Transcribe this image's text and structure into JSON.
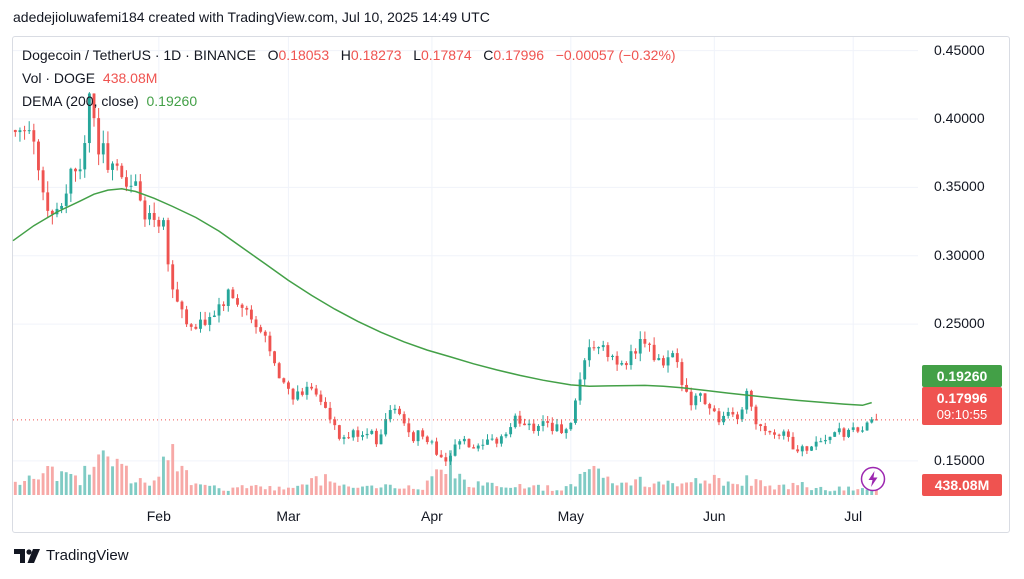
{
  "caption": "adedejioluwafemi184 created with TradingView.com, Jul 10, 2025 14:49 UTC",
  "legend": {
    "symbol": "Dogecoin / TetherUS · 1D · BINANCE",
    "o_label": "O",
    "o": "0.18053",
    "h_label": "H",
    "h": "0.18273",
    "l_label": "L",
    "l": "0.17874",
    "c_label": "C",
    "c": "0.17996",
    "change": "−0.00057 (−0.32%)",
    "vol_label": "Vol · DOGE",
    "vol": "438.08M",
    "dema_label": "DEMA (200, close)",
    "dema": "0.19260"
  },
  "badges": {
    "dema_price": "0.19260",
    "last_price": "0.17996",
    "countdown": "09:10:55",
    "volume": "438.08M"
  },
  "footer": {
    "brand": "TradingView"
  },
  "colors": {
    "up": "#26a69a",
    "down": "#ef5350",
    "dema": "#43a047",
    "vol_up": "#80cbc4",
    "vol_down": "#f7a9a7"
  },
  "chart_data": {
    "type": "candlestick",
    "ylim": [
      0.125,
      0.46
    ],
    "y_ticks": [
      "0.45000",
      "0.40000",
      "0.35000",
      "0.30000",
      "0.25000",
      "0.15000"
    ],
    "x_tick_labels": [
      "Feb",
      "Mar",
      "Apr",
      "May",
      "Jun",
      "Jul"
    ],
    "x_ticks": [
      17,
      45,
      76,
      106,
      137,
      167
    ],
    "x_range": [
      -14.5,
      181
    ],
    "last_price": 0.17996,
    "dema_value": 0.1926,
    "close_path": [
      [
        -14,
        0.392
      ],
      [
        -12,
        0.4
      ],
      [
        -10,
        0.385
      ],
      [
        -8,
        0.345
      ],
      [
        -6,
        0.33
      ],
      [
        -4,
        0.34
      ],
      [
        -2,
        0.36
      ],
      [
        0,
        0.37
      ],
      [
        2,
        0.41
      ],
      [
        4,
        0.38
      ],
      [
        6,
        0.37
      ],
      [
        8,
        0.36
      ],
      [
        10,
        0.355
      ],
      [
        12,
        0.35
      ],
      [
        14,
        0.33
      ],
      [
        16,
        0.33
      ],
      [
        18,
        0.325
      ],
      [
        20,
        0.275
      ],
      [
        22,
        0.26
      ],
      [
        24,
        0.245
      ],
      [
        26,
        0.248
      ],
      [
        28,
        0.255
      ],
      [
        30,
        0.262
      ],
      [
        32,
        0.27
      ],
      [
        34,
        0.265
      ],
      [
        36,
        0.258
      ],
      [
        38,
        0.245
      ],
      [
        40,
        0.24
      ],
      [
        42,
        0.225
      ],
      [
        44,
        0.205
      ],
      [
        46,
        0.195
      ],
      [
        48,
        0.2
      ],
      [
        50,
        0.205
      ],
      [
        52,
        0.195
      ],
      [
        54,
        0.18
      ],
      [
        56,
        0.165
      ],
      [
        58,
        0.168
      ],
      [
        60,
        0.17
      ],
      [
        62,
        0.172
      ],
      [
        64,
        0.165
      ],
      [
        66,
        0.18
      ],
      [
        68,
        0.19
      ],
      [
        70,
        0.175
      ],
      [
        72,
        0.168
      ],
      [
        74,
        0.17
      ],
      [
        76,
        0.162
      ],
      [
        78,
        0.15
      ],
      [
        80,
        0.155
      ],
      [
        82,
        0.165
      ],
      [
        84,
        0.16
      ],
      [
        86,
        0.158
      ],
      [
        88,
        0.162
      ],
      [
        90,
        0.165
      ],
      [
        92,
        0.17
      ],
      [
        94,
        0.18
      ],
      [
        96,
        0.178
      ],
      [
        98,
        0.175
      ],
      [
        100,
        0.18
      ],
      [
        102,
        0.175
      ],
      [
        104,
        0.172
      ],
      [
        106,
        0.175
      ],
      [
        108,
        0.205
      ],
      [
        110,
        0.235
      ],
      [
        112,
        0.232
      ],
      [
        114,
        0.228
      ],
      [
        116,
        0.22
      ],
      [
        118,
        0.225
      ],
      [
        120,
        0.23
      ],
      [
        122,
        0.238
      ],
      [
        124,
        0.225
      ],
      [
        126,
        0.22
      ],
      [
        128,
        0.225
      ],
      [
        130,
        0.21
      ],
      [
        132,
        0.195
      ],
      [
        134,
        0.198
      ],
      [
        136,
        0.19
      ],
      [
        138,
        0.18
      ],
      [
        140,
        0.182
      ],
      [
        142,
        0.18
      ],
      [
        144,
        0.2
      ],
      [
        146,
        0.18
      ],
      [
        148,
        0.175
      ],
      [
        150,
        0.17
      ],
      [
        152,
        0.172
      ],
      [
        154,
        0.16
      ],
      [
        156,
        0.158
      ],
      [
        158,
        0.162
      ],
      [
        160,
        0.165
      ],
      [
        162,
        0.168
      ],
      [
        164,
        0.17
      ],
      [
        166,
        0.17
      ],
      [
        168,
        0.172
      ],
      [
        170,
        0.175
      ],
      [
        172,
        0.18
      ]
    ],
    "dema_line": [
      [
        -14.5,
        0.311
      ],
      [
        -10,
        0.322
      ],
      [
        -5,
        0.332
      ],
      [
        0,
        0.34
      ],
      [
        3,
        0.345
      ],
      [
        6,
        0.348
      ],
      [
        9,
        0.349
      ],
      [
        12,
        0.347
      ],
      [
        16,
        0.342
      ],
      [
        20,
        0.336
      ],
      [
        25,
        0.328
      ],
      [
        30,
        0.318
      ],
      [
        35,
        0.306
      ],
      [
        40,
        0.294
      ],
      [
        45,
        0.282
      ],
      [
        50,
        0.271
      ],
      [
        55,
        0.261
      ],
      [
        60,
        0.252
      ],
      [
        65,
        0.244
      ],
      [
        70,
        0.237
      ],
      [
        75,
        0.231
      ],
      [
        80,
        0.226
      ],
      [
        85,
        0.221
      ],
      [
        90,
        0.2165
      ],
      [
        95,
        0.2125
      ],
      [
        100,
        0.209
      ],
      [
        106,
        0.2055
      ],
      [
        110,
        0.2045
      ],
      [
        114,
        0.2048
      ],
      [
        118,
        0.205
      ],
      [
        122,
        0.2052
      ],
      [
        126,
        0.2045
      ],
      [
        130,
        0.2035
      ],
      [
        135,
        0.2015
      ],
      [
        140,
        0.1995
      ],
      [
        145,
        0.1977
      ],
      [
        150,
        0.1959
      ],
      [
        155,
        0.1942
      ],
      [
        160,
        0.1928
      ],
      [
        165,
        0.1915
      ],
      [
        169,
        0.1906
      ],
      [
        171,
        0.1926
      ]
    ],
    "volume_scale_max": 100,
    "volume_path": [
      [
        -14,
        22
      ],
      [
        -8,
        25
      ],
      [
        -4,
        30
      ],
      [
        0,
        18
      ],
      [
        3,
        45
      ],
      [
        5,
        50
      ],
      [
        8,
        38
      ],
      [
        12,
        18
      ],
      [
        16,
        15
      ],
      [
        20,
        55
      ],
      [
        24,
        12
      ],
      [
        30,
        8
      ],
      [
        36,
        10
      ],
      [
        40,
        9
      ],
      [
        44,
        7
      ],
      [
        48,
        14
      ],
      [
        50,
        25
      ],
      [
        54,
        18
      ],
      [
        56,
        10
      ],
      [
        60,
        9
      ],
      [
        64,
        8
      ],
      [
        70,
        12
      ],
      [
        74,
        9
      ],
      [
        78,
        32
      ],
      [
        80,
        40
      ],
      [
        84,
        14
      ],
      [
        90,
        10
      ],
      [
        96,
        12
      ],
      [
        100,
        9
      ],
      [
        104,
        8
      ],
      [
        108,
        22
      ],
      [
        110,
        45
      ],
      [
        112,
        28
      ],
      [
        116,
        20
      ],
      [
        120,
        18
      ],
      [
        124,
        14
      ],
      [
        130,
        12
      ],
      [
        134,
        22
      ],
      [
        140,
        14
      ],
      [
        144,
        18
      ],
      [
        148,
        12
      ],
      [
        152,
        10
      ],
      [
        156,
        14
      ],
      [
        160,
        8
      ],
      [
        164,
        9
      ],
      [
        168,
        8
      ],
      [
        172,
        10
      ]
    ],
    "seed": 12345
  }
}
